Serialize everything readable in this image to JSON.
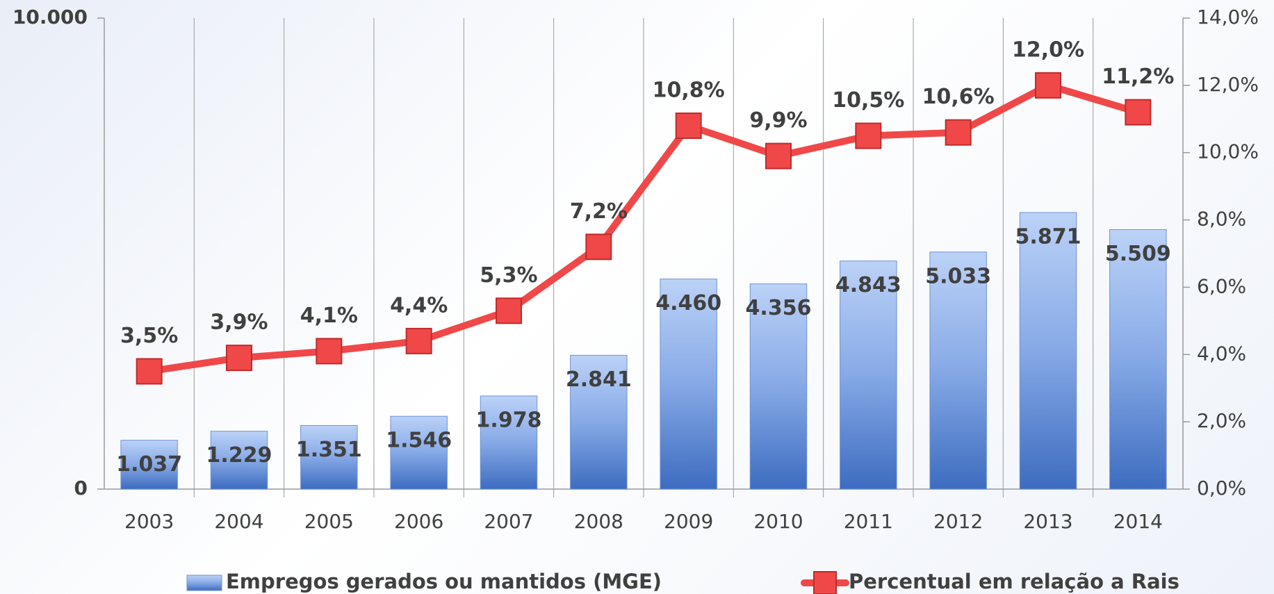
{
  "chart_data": {
    "type": "bar_line",
    "categories": [
      "2003",
      "2004",
      "2005",
      "2006",
      "2007",
      "2008",
      "2009",
      "2010",
      "2011",
      "2012",
      "2013",
      "2014"
    ],
    "series": [
      {
        "name": "Empregos gerados ou mantidos (MGE)",
        "color": "#4f7fd0",
        "type": "bar",
        "values": [
          1037,
          1229,
          1351,
          1546,
          1978,
          2841,
          4460,
          4356,
          4843,
          5033,
          5871,
          5509
        ],
        "value_labels": [
          "1.037",
          "1.229",
          "1.351",
          "1.546",
          "1.978",
          "2.841",
          "4.460",
          "4.356",
          "4.843",
          "5.033",
          "5.871",
          "5.509"
        ]
      },
      {
        "name": "Percentual em relação a Rais",
        "color": "#f04848",
        "type": "line",
        "axis": "y2",
        "values": [
          3.5,
          3.9,
          4.1,
          4.4,
          5.3,
          7.2,
          10.8,
          9.9,
          10.5,
          10.6,
          12.0,
          11.2
        ],
        "value_labels": [
          "3,5%",
          "3,9%",
          "4,1%",
          "4,4%",
          "5,3%",
          "7,2%",
          "10,8%",
          "9,9%",
          "10,5%",
          "10,6%",
          "12,0%",
          "11,2%"
        ]
      }
    ],
    "ylim": [
      0,
      10000
    ],
    "yticks": [
      0,
      {
        "value": 10000,
        "label": "10.000"
      }
    ],
    "y2lim": [
      0,
      14
    ],
    "y2ticks": [
      {
        "value": 0,
        "label": "0,0%"
      },
      {
        "value": 2,
        "label": "2,0%"
      },
      {
        "value": 4,
        "label": "4,0%"
      },
      {
        "value": 6,
        "label": "6,0%"
      },
      {
        "value": 8,
        "label": "8,0%"
      },
      {
        "value": 10,
        "label": "10,0%"
      },
      {
        "value": 12,
        "label": "12,0%"
      },
      {
        "value": 14,
        "label": "14,0%"
      }
    ],
    "grid": true,
    "legend": "bottom"
  }
}
